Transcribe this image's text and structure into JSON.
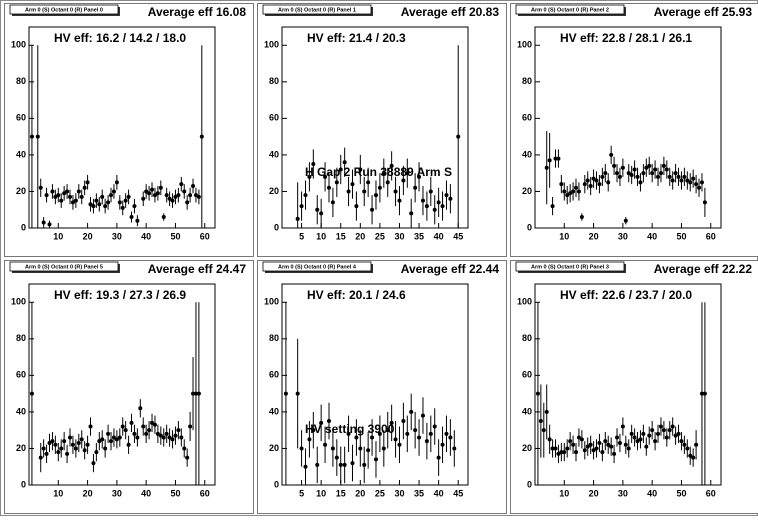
{
  "chart_data": [
    {
      "type": "errorbar",
      "title": "Arm 0 (S) Octant 0 (R) Panel 0",
      "subtitle": "Average eff 16.08",
      "annotations": [
        "HV eff:   16.2 / 14.2 / 18.0"
      ],
      "x": [
        1,
        2,
        3,
        4,
        5,
        6,
        7,
        8,
        9,
        10,
        11,
        12,
        13,
        14,
        15,
        16,
        17,
        18,
        19,
        20,
        21,
        22,
        23,
        24,
        25,
        26,
        27,
        28,
        29,
        30,
        31,
        32,
        33,
        34,
        35,
        36,
        37,
        38,
        39,
        40,
        41,
        42,
        43,
        44,
        45,
        46,
        47,
        48,
        49,
        50,
        51,
        52,
        53,
        54,
        55,
        56,
        57,
        58,
        59
      ],
      "values": [
        50,
        null,
        50,
        22,
        3,
        18,
        2,
        20,
        17,
        18,
        15,
        19,
        20,
        17,
        14,
        15,
        20,
        17,
        22,
        25,
        13,
        12,
        15,
        13,
        17,
        12,
        14,
        18,
        20,
        25,
        14,
        11,
        15,
        17,
        6,
        12,
        4,
        null,
        16,
        20,
        19,
        21,
        18,
        19,
        22,
        6,
        18,
        16,
        15,
        17,
        18,
        24,
        20,
        14,
        18,
        23,
        18,
        17,
        50
      ],
      "errors": [
        50,
        null,
        50,
        5,
        3,
        4,
        2,
        4,
        4,
        4,
        4,
        4,
        4,
        4,
        4,
        4,
        4,
        4,
        4,
        4,
        4,
        4,
        4,
        4,
        4,
        4,
        4,
        4,
        4,
        4,
        4,
        4,
        4,
        4,
        3,
        4,
        3,
        null,
        4,
        4,
        4,
        4,
        4,
        4,
        4,
        2,
        4,
        4,
        4,
        4,
        4,
        4,
        4,
        4,
        4,
        4,
        4,
        4,
        50
      ],
      "xlim": [
        0,
        63.5
      ],
      "ylim": [
        0,
        110
      ],
      "xticks": [
        10,
        20,
        30,
        40,
        50,
        60
      ],
      "yticks": [
        0,
        20,
        40,
        60,
        80,
        100
      ],
      "color": "#000000"
    },
    {
      "type": "errorbar",
      "title": "Arm 0 (S) Octant 0 (R) Panel 1",
      "subtitle": "Average eff 20.83",
      "annotations": [
        "HV eff:   21.4 / 20.3",
        "H Gap 2 Run 38889 Arm S"
      ],
      "x": [
        1,
        2,
        3,
        4,
        5,
        6,
        7,
        8,
        9,
        10,
        11,
        12,
        13,
        14,
        15,
        16,
        17,
        18,
        19,
        20,
        21,
        22,
        23,
        24,
        25,
        26,
        27,
        28,
        29,
        30,
        31,
        32,
        33,
        34,
        35,
        36,
        37,
        38,
        39,
        40,
        41,
        42,
        43,
        44,
        45
      ],
      "values": [
        null,
        null,
        null,
        5,
        12,
        18,
        28,
        35,
        10,
        8,
        28,
        22,
        14,
        25,
        32,
        36,
        20,
        24,
        12,
        32,
        20,
        25,
        10,
        18,
        22,
        30,
        25,
        34,
        20,
        15,
        26,
        30,
        8,
        22,
        28,
        15,
        12,
        20,
        10,
        14,
        12,
        18,
        16,
        null,
        50
      ],
      "errors": [
        null,
        null,
        null,
        20,
        8,
        8,
        8,
        8,
        8,
        8,
        8,
        8,
        8,
        8,
        8,
        8,
        8,
        8,
        8,
        8,
        8,
        8,
        8,
        8,
        8,
        8,
        8,
        8,
        8,
        8,
        8,
        8,
        8,
        8,
        8,
        8,
        8,
        8,
        8,
        8,
        8,
        8,
        8,
        null,
        50
      ],
      "xlim": [
        0,
        47.5
      ],
      "ylim": [
        0,
        110
      ],
      "xticks": [
        5,
        10,
        15,
        20,
        25,
        30,
        35,
        40,
        45
      ],
      "yticks": [
        0,
        20,
        40,
        60,
        80,
        100
      ],
      "color": "#000000"
    },
    {
      "type": "errorbar",
      "title": "Arm 0 (S) Octant 0 (R) Panel 2",
      "subtitle": "Average eff 25.93",
      "annotations": [
        "HV eff:   22.8 / 28.1 / 26.1"
      ],
      "x": [
        1,
        2,
        3,
        4,
        5,
        6,
        7,
        8,
        9,
        10,
        11,
        12,
        13,
        14,
        15,
        16,
        17,
        18,
        19,
        20,
        21,
        22,
        23,
        24,
        25,
        26,
        27,
        28,
        29,
        30,
        31,
        32,
        33,
        34,
        35,
        36,
        37,
        38,
        39,
        40,
        41,
        42,
        43,
        44,
        45,
        46,
        47,
        48,
        49,
        50,
        51,
        52,
        53,
        54,
        55,
        56,
        57,
        58,
        59
      ],
      "values": [
        null,
        null,
        null,
        33,
        37,
        12,
        38,
        38,
        24,
        20,
        18,
        19,
        20,
        22,
        20,
        6,
        24,
        26,
        23,
        27,
        26,
        24,
        28,
        30,
        25,
        40,
        34,
        30,
        28,
        33,
        4,
        30,
        29,
        32,
        28,
        25,
        30,
        33,
        34,
        30,
        32,
        28,
        30,
        34,
        32,
        28,
        26,
        30,
        28,
        26,
        28,
        26,
        25,
        27,
        24,
        22,
        25,
        14,
        null
      ],
      "errors": [
        null,
        null,
        null,
        20,
        15,
        5,
        5,
        5,
        5,
        5,
        5,
        5,
        5,
        5,
        5,
        2,
        5,
        5,
        5,
        5,
        5,
        5,
        5,
        5,
        5,
        5,
        5,
        5,
        5,
        5,
        2,
        5,
        5,
        5,
        5,
        5,
        5,
        5,
        5,
        5,
        5,
        5,
        5,
        5,
        5,
        5,
        5,
        5,
        5,
        5,
        5,
        5,
        5,
        5,
        5,
        5,
        5,
        8,
        null
      ],
      "xlim": [
        0,
        63.5
      ],
      "ylim": [
        0,
        110
      ],
      "xticks": [
        10,
        20,
        30,
        40,
        50,
        60
      ],
      "yticks": [
        0,
        20,
        40,
        60,
        80,
        100
      ],
      "color": "#000000"
    },
    {
      "type": "errorbar",
      "title": "Arm 0 (S) Octant 0 (R) Panel 5",
      "subtitle": "Average eff 24.47",
      "annotations": [
        "HV eff:   19.3 / 27.3 / 26.9"
      ],
      "x": [
        1,
        2,
        3,
        4,
        5,
        6,
        7,
        8,
        9,
        10,
        11,
        12,
        13,
        14,
        15,
        16,
        17,
        18,
        19,
        20,
        21,
        22,
        23,
        24,
        25,
        26,
        27,
        28,
        29,
        30,
        31,
        32,
        33,
        34,
        35,
        36,
        37,
        38,
        39,
        40,
        41,
        42,
        43,
        44,
        45,
        46,
        47,
        48,
        49,
        50,
        51,
        52,
        53,
        54,
        55,
        56,
        57,
        58,
        59
      ],
      "values": [
        50,
        null,
        null,
        15,
        20,
        17,
        23,
        24,
        22,
        18,
        20,
        24,
        17,
        26,
        22,
        20,
        23,
        25,
        19,
        22,
        32,
        12,
        18,
        24,
        25,
        20,
        28,
        24,
        26,
        25,
        26,
        32,
        30,
        22,
        34,
        28,
        26,
        42,
        32,
        28,
        30,
        34,
        33,
        28,
        27,
        26,
        28,
        26,
        25,
        27,
        30,
        26,
        20,
        15,
        32,
        50,
        50,
        50,
        null
      ],
      "errors": [
        50,
        null,
        null,
        8,
        5,
        5,
        5,
        5,
        5,
        5,
        5,
        5,
        5,
        5,
        5,
        5,
        5,
        5,
        5,
        5,
        5,
        5,
        5,
        5,
        5,
        5,
        5,
        5,
        5,
        5,
        5,
        5,
        5,
        5,
        5,
        5,
        5,
        5,
        5,
        5,
        5,
        5,
        5,
        5,
        5,
        5,
        5,
        5,
        5,
        5,
        5,
        5,
        5,
        5,
        8,
        20,
        50,
        50,
        null
      ],
      "xlim": [
        0,
        63.5
      ],
      "ylim": [
        0,
        110
      ],
      "xticks": [
        10,
        20,
        30,
        40,
        50,
        60
      ],
      "yticks": [
        0,
        20,
        40,
        60,
        80,
        100
      ],
      "color": "#000000"
    },
    {
      "type": "errorbar",
      "title": "Arm 0 (S) Octant 0 (R) Panel 4",
      "subtitle": "Average eff 22.44",
      "annotations": [
        "HV eff:   20.1 / 24.6",
        "HV setting 3900"
      ],
      "x": [
        1,
        2,
        3,
        4,
        5,
        6,
        7,
        8,
        9,
        10,
        11,
        12,
        13,
        14,
        15,
        16,
        17,
        18,
        19,
        20,
        21,
        22,
        23,
        24,
        25,
        26,
        27,
        28,
        29,
        30,
        31,
        32,
        33,
        34,
        35,
        36,
        37,
        38,
        39,
        40,
        41,
        42,
        43,
        44,
        45
      ],
      "values": [
        50,
        null,
        null,
        50,
        20,
        10,
        25,
        30,
        11,
        34,
        22,
        35,
        20,
        15,
        11,
        11,
        28,
        12,
        26,
        20,
        11,
        19,
        26,
        14,
        28,
        20,
        30,
        34,
        25,
        22,
        35,
        28,
        40,
        30,
        26,
        38,
        24,
        28,
        32,
        15,
        22,
        28,
        26,
        20,
        null
      ],
      "errors": [
        50,
        null,
        null,
        30,
        10,
        10,
        10,
        10,
        10,
        10,
        10,
        10,
        10,
        10,
        10,
        10,
        10,
        10,
        10,
        10,
        10,
        10,
        10,
        10,
        10,
        10,
        10,
        10,
        10,
        10,
        10,
        10,
        10,
        10,
        10,
        10,
        10,
        10,
        10,
        10,
        10,
        10,
        10,
        10,
        null
      ],
      "xlim": [
        0,
        47.5
      ],
      "ylim": [
        0,
        110
      ],
      "xticks": [
        5,
        10,
        15,
        20,
        25,
        30,
        35,
        40,
        45
      ],
      "yticks": [
        0,
        20,
        40,
        60,
        80,
        100
      ],
      "color": "#000000"
    },
    {
      "type": "errorbar",
      "title": "Arm 0 (S) Octant 0 (R) Panel 3",
      "subtitle": "Average eff 22.22",
      "annotations": [
        "HV eff:   22.6 / 23.7 / 20.0"
      ],
      "x": [
        1,
        2,
        3,
        4,
        5,
        6,
        7,
        8,
        9,
        10,
        11,
        12,
        13,
        14,
        15,
        16,
        17,
        18,
        19,
        20,
        21,
        22,
        23,
        24,
        25,
        26,
        27,
        28,
        29,
        30,
        31,
        32,
        33,
        34,
        35,
        36,
        37,
        38,
        39,
        40,
        41,
        42,
        43,
        44,
        45,
        46,
        47,
        48,
        49,
        50,
        51,
        52,
        53,
        54,
        55,
        56,
        57,
        58,
        59
      ],
      "values": [
        50,
        35,
        30,
        40,
        25,
        20,
        20,
        17,
        18,
        18,
        20,
        24,
        22,
        18,
        26,
        25,
        19,
        21,
        22,
        19,
        20,
        23,
        18,
        24,
        22,
        21,
        17,
        26,
        23,
        32,
        22,
        20,
        28,
        26,
        24,
        25,
        28,
        21,
        27,
        30,
        24,
        28,
        32,
        30,
        26,
        30,
        32,
        27,
        28,
        24,
        22,
        20,
        16,
        15,
        22,
        null,
        50,
        50,
        null
      ],
      "errors": [
        50,
        20,
        15,
        15,
        8,
        5,
        5,
        5,
        5,
        5,
        5,
        5,
        5,
        5,
        5,
        5,
        5,
        5,
        5,
        5,
        5,
        5,
        5,
        5,
        5,
        5,
        5,
        5,
        5,
        5,
        5,
        5,
        5,
        5,
        5,
        5,
        5,
        5,
        5,
        5,
        5,
        5,
        5,
        5,
        5,
        5,
        5,
        5,
        5,
        5,
        5,
        5,
        5,
        5,
        8,
        null,
        50,
        50,
        null
      ],
      "xlim": [
        0,
        63.5
      ],
      "ylim": [
        0,
        110
      ],
      "xticks": [
        10,
        20,
        30,
        40,
        50,
        60
      ],
      "yticks": [
        0,
        20,
        40,
        60,
        80,
        100
      ],
      "color": "#000000"
    }
  ]
}
